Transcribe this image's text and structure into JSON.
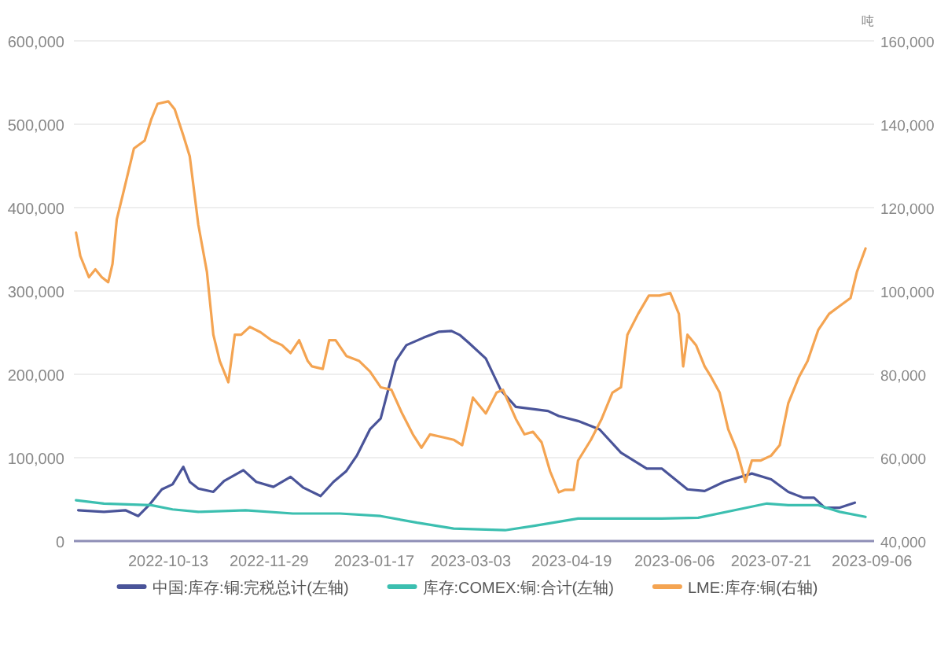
{
  "chart_data": {
    "type": "line",
    "y2label": "吨",
    "xlim": [
      "2022-08-30",
      "2023-09-07"
    ],
    "xticks": [
      "2022-10-13",
      "2022-11-29",
      "2023-01-17",
      "2023-03-03",
      "2023-04-19",
      "2023-06-06",
      "2023-07-21",
      "2023-09-06"
    ],
    "ylim": [
      0,
      600000
    ],
    "yticks": [
      {
        "value": 0,
        "label": "0"
      },
      {
        "value": 100000,
        "label": "100,000"
      },
      {
        "value": 200000,
        "label": "200,000"
      },
      {
        "value": 300000,
        "label": "300,000"
      },
      {
        "value": 400000,
        "label": "400,000"
      },
      {
        "value": 500000,
        "label": "500,000"
      },
      {
        "value": 600000,
        "label": "600,000"
      }
    ],
    "y2lim": [
      40000,
      160000
    ],
    "y2ticks": [
      {
        "value": 40000,
        "label": "40,000"
      },
      {
        "value": 60000,
        "label": "60,000"
      },
      {
        "value": 80000,
        "label": "80,000"
      },
      {
        "value": 100000,
        "label": "100,000"
      },
      {
        "value": 120000,
        "label": "120,000"
      },
      {
        "value": 140000,
        "label": "140,000"
      },
      {
        "value": 160000,
        "label": "160,000"
      }
    ],
    "grid": "y",
    "legend": "bottom",
    "marker": "none",
    "line_style": "solid",
    "series": [
      {
        "name": "中国:库存:铜:完税总计(左轴)",
        "color": "#4a5499",
        "x": [
          "2022-09-01",
          "2022-09-13",
          "2022-09-23",
          "2022-09-29",
          "2022-10-04",
          "2022-10-10",
          "2022-10-15",
          "2022-10-20",
          "2022-10-23",
          "2022-10-27",
          "2022-11-03",
          "2022-11-08",
          "2022-11-17",
          "2022-11-23",
          "2022-12-01",
          "2022-12-09",
          "2022-12-15",
          "2022-12-23",
          "2022-12-29",
          "2023-01-04",
          "2023-01-09",
          "2023-01-15",
          "2023-01-20",
          "2023-01-27",
          "2023-02-01",
          "2023-02-09",
          "2023-02-16",
          "2023-02-22",
          "2023-02-26",
          "2023-03-02",
          "2023-03-10",
          "2023-03-17",
          "2023-03-24",
          "2023-04-08",
          "2023-04-13",
          "2023-04-22",
          "2023-05-02",
          "2023-05-12",
          "2023-05-24",
          "2023-05-31",
          "2023-06-12",
          "2023-06-20",
          "2023-06-29",
          "2023-07-12",
          "2023-07-21",
          "2023-07-29",
          "2023-08-05",
          "2023-08-10",
          "2023-08-15",
          "2023-08-22",
          "2023-08-29"
        ],
        "values": [
          37000,
          35000,
          37000,
          30000,
          43000,
          62000,
          68000,
          89000,
          71000,
          63000,
          59000,
          72000,
          85000,
          71000,
          65000,
          77000,
          64000,
          54000,
          71000,
          84000,
          103000,
          134000,
          147000,
          216000,
          235000,
          244000,
          251000,
          252000,
          247000,
          238000,
          219000,
          181000,
          161000,
          156000,
          150000,
          144000,
          134000,
          106000,
          87000,
          87000,
          62000,
          60000,
          71000,
          81000,
          74000,
          59000,
          52000,
          52000,
          40000,
          40000,
          46000
        ]
      },
      {
        "name": "库存:COMEX:铜:合计(左轴)",
        "color": "#3cbfb0",
        "x": [
          "2022-08-31",
          "2022-09-13",
          "2022-10-05",
          "2022-10-15",
          "2022-10-27",
          "2022-11-18",
          "2022-12-10",
          "2023-01-01",
          "2023-01-20",
          "2023-02-06",
          "2023-02-23",
          "2023-03-19",
          "2023-04-01",
          "2023-04-22",
          "2023-05-31",
          "2023-06-17",
          "2023-07-04",
          "2023-07-19",
          "2023-07-29",
          "2023-08-12",
          "2023-08-22",
          "2023-09-03"
        ],
        "values": [
          49000,
          45000,
          43000,
          38000,
          35000,
          37000,
          33000,
          33000,
          30000,
          22000,
          15000,
          13000,
          18000,
          27000,
          27000,
          28000,
          37000,
          45000,
          43000,
          43000,
          35000,
          29000
        ]
      },
      {
        "name": "LME:库存:铜(右轴)",
        "color": "#f4a452",
        "axis": "y2",
        "x": [
          "2022-08-31",
          "2022-09-02",
          "2022-09-06",
          "2022-09-09",
          "2022-09-12",
          "2022-09-15",
          "2022-09-17",
          "2022-09-19",
          "2022-09-22",
          "2022-09-27",
          "2022-10-02",
          "2022-10-05",
          "2022-10-08",
          "2022-10-13",
          "2022-10-16",
          "2022-10-20",
          "2022-10-23",
          "2022-10-27",
          "2022-10-31",
          "2022-11-03",
          "2022-11-06",
          "2022-11-10",
          "2022-11-13",
          "2022-11-16",
          "2022-11-20",
          "2022-11-25",
          "2022-11-30",
          "2022-12-05",
          "2022-12-09",
          "2022-12-13",
          "2022-12-17",
          "2022-12-19",
          "2022-12-24",
          "2022-12-27",
          "2022-12-30",
          "2023-01-04",
          "2023-01-10",
          "2023-01-15",
          "2023-01-20",
          "2023-01-25",
          "2023-01-30",
          "2023-02-04",
          "2023-02-08",
          "2023-02-12",
          "2023-02-18",
          "2023-02-23",
          "2023-02-27",
          "2023-03-04",
          "2023-03-10",
          "2023-03-15",
          "2023-03-18",
          "2023-03-24",
          "2023-03-28",
          "2023-04-01",
          "2023-04-05",
          "2023-04-09",
          "2023-04-13",
          "2023-04-16",
          "2023-04-20",
          "2023-04-22",
          "2023-04-28",
          "2023-05-03",
          "2023-05-08",
          "2023-05-12",
          "2023-05-15",
          "2023-05-20",
          "2023-05-25",
          "2023-05-30",
          "2023-06-04",
          "2023-06-08",
          "2023-06-10",
          "2023-06-12",
          "2023-06-16",
          "2023-06-20",
          "2023-06-23",
          "2023-06-27",
          "2023-07-01",
          "2023-07-05",
          "2023-07-09",
          "2023-07-12",
          "2023-07-16",
          "2023-07-21",
          "2023-07-25",
          "2023-07-29",
          "2023-08-03",
          "2023-08-07",
          "2023-08-12",
          "2023-08-17",
          "2023-08-22",
          "2023-08-27",
          "2023-08-30",
          "2023-09-03"
        ],
        "values": [
          114000,
          108400,
          103300,
          105200,
          103300,
          102100,
          106500,
          117200,
          123500,
          134200,
          136100,
          141100,
          144900,
          145500,
          143600,
          137300,
          132300,
          115900,
          104600,
          89500,
          83200,
          78100,
          89500,
          89500,
          91400,
          90100,
          88200,
          87000,
          85100,
          88200,
          83200,
          81900,
          81300,
          88200,
          88200,
          84400,
          83200,
          80700,
          76900,
          76300,
          70600,
          65600,
          62400,
          65600,
          64900,
          64300,
          63000,
          74400,
          70600,
          75600,
          76300,
          69300,
          65600,
          66200,
          63700,
          56700,
          51700,
          52300,
          52300,
          59300,
          64300,
          69300,
          75600,
          76900,
          89500,
          94500,
          98900,
          98900,
          99500,
          94500,
          81900,
          89500,
          87000,
          81900,
          79400,
          75600,
          66800,
          61800,
          54200,
          59300,
          59300,
          60500,
          63000,
          73100,
          79400,
          83200,
          90700,
          94500,
          96400,
          98300,
          104600,
          110200
        ]
      }
    ]
  }
}
